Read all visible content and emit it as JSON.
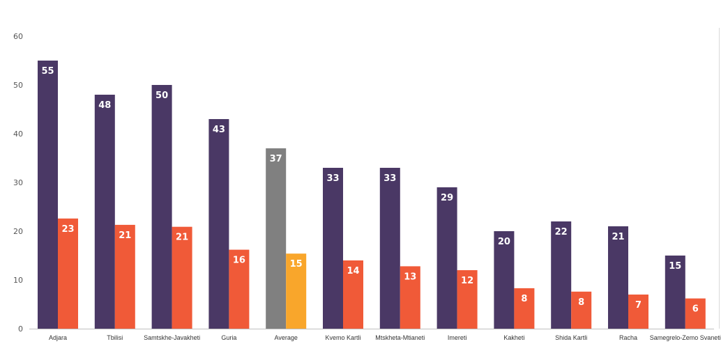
{
  "chart_data": {
    "type": "bar",
    "title": "",
    "xlabel": "",
    "ylabel": "",
    "ylim": [
      0,
      60
    ],
    "yticks": [
      0,
      10,
      20,
      30,
      40,
      50,
      60
    ],
    "grid": false,
    "legend": "none",
    "categories": [
      "Adjara",
      "Tbilisi",
      "Samtskhe-Javakheti",
      "Guria",
      "Average",
      "Kvemo Kartli",
      "Mtskheta-Mtianeti",
      "Imereti",
      "Kakheti",
      "Shida Kartli",
      "Racha",
      "Samegrelo-Zemo Svaneti"
    ],
    "series": [
      {
        "values": [
          55,
          48,
          50,
          43,
          37,
          33,
          33,
          29,
          20,
          22,
          21,
          15
        ],
        "labels": [
          "55",
          "48",
          "50",
          "43",
          "37",
          "33",
          "33",
          "29",
          "20",
          "22",
          "21",
          "15"
        ],
        "color": "#4a3865",
        "highlight_color": "#808080"
      },
      {
        "values": [
          22.6,
          21.3,
          20.9,
          16.2,
          15.4,
          14,
          12.8,
          12,
          8.3,
          7.6,
          7,
          6.2
        ],
        "labels": [
          "23",
          "21",
          "21",
          "16",
          "15",
          "14",
          "13",
          "12",
          "8",
          "8",
          "7",
          "6"
        ],
        "color": "#f05a38",
        "highlight_color": "#f9a62b"
      }
    ],
    "highlight_category": "Average"
  }
}
